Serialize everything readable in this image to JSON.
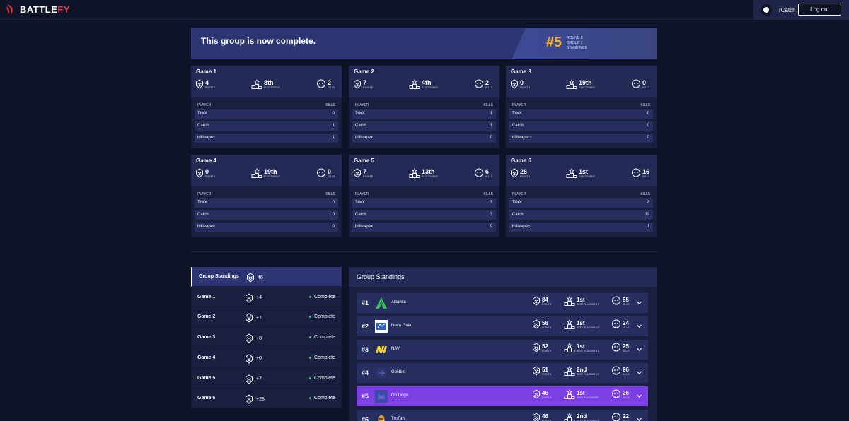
{
  "header": {
    "brand": "BATTLE",
    "brand_accent": "FY",
    "username": "rCatch",
    "logout_label": "Log out"
  },
  "banner": {
    "message": "This group is now complete.",
    "rank": "#5",
    "round": "ROUND 8",
    "group": "GROUP 1",
    "standings": "STANDINGS"
  },
  "labels": {
    "points": "POINTS",
    "placement": "PLACEMENT",
    "kills": "KILLS",
    "player": "PLAYER",
    "best_placement": "BEST PLACEMENT"
  },
  "games": [
    {
      "title": "Game 1",
      "points": "4",
      "placement": "8th",
      "kills": "2",
      "players": [
        {
          "name": "TrixX",
          "kills": "0"
        },
        {
          "name": "Catch",
          "kills": "1"
        },
        {
          "name": "billieapex",
          "kills": "1"
        }
      ]
    },
    {
      "title": "Game 2",
      "points": "7",
      "placement": "4th",
      "kills": "2",
      "players": [
        {
          "name": "TrixX",
          "kills": "1"
        },
        {
          "name": "Catch",
          "kills": "1"
        },
        {
          "name": "billieapex",
          "kills": "0"
        }
      ]
    },
    {
      "title": "Game 3",
      "points": "0",
      "placement": "19th",
      "kills": "0",
      "players": [
        {
          "name": "TrixX",
          "kills": "0"
        },
        {
          "name": "Catch",
          "kills": "0"
        },
        {
          "name": "billieapex",
          "kills": "0"
        }
      ]
    },
    {
      "title": "Game 4",
      "points": "0",
      "placement": "19th",
      "kills": "0",
      "players": [
        {
          "name": "TrixX",
          "kills": "0"
        },
        {
          "name": "Catch",
          "kills": "0"
        },
        {
          "name": "billieapex",
          "kills": "0"
        }
      ]
    },
    {
      "title": "Game 5",
      "points": "7",
      "placement": "13th",
      "kills": "6",
      "players": [
        {
          "name": "TrixX",
          "kills": "3"
        },
        {
          "name": "Catch",
          "kills": "3"
        },
        {
          "name": "billieapex",
          "kills": "0"
        }
      ]
    },
    {
      "title": "Game 6",
      "points": "28",
      "placement": "1st",
      "kills": "16",
      "players": [
        {
          "name": "TrixX",
          "kills": "3"
        },
        {
          "name": "Catch",
          "kills": "12"
        },
        {
          "name": "billieapex",
          "kills": "1"
        }
      ]
    }
  ],
  "sidebar": {
    "items": [
      {
        "label": "Group Standings",
        "points": "46",
        "status": ""
      },
      {
        "label": "Game 1",
        "points": "+4",
        "status": "Complete"
      },
      {
        "label": "Game 2",
        "points": "+7",
        "status": "Complete"
      },
      {
        "label": "Game 3",
        "points": "+0",
        "status": "Complete"
      },
      {
        "label": "Game 4",
        "points": "+0",
        "status": "Complete"
      },
      {
        "label": "Game 5",
        "points": "+7",
        "status": "Complete"
      },
      {
        "label": "Game 6",
        "points": "+28",
        "status": "Complete"
      }
    ]
  },
  "standings": {
    "title": "Group Standings",
    "rows": [
      {
        "rank": "#1",
        "team": "Alliance",
        "points": "84",
        "best": "1st",
        "kills": "55",
        "logo": "alliance-logo",
        "highlight": false
      },
      {
        "rank": "#2",
        "team": "Nova Gaia",
        "points": "56",
        "best": "1st",
        "kills": "24",
        "logo": "nova-gaia-logo",
        "highlight": false
      },
      {
        "rank": "#3",
        "team": "NAVI",
        "points": "52",
        "best": "1st",
        "kills": "25",
        "logo": "navi-logo",
        "highlight": false
      },
      {
        "rank": "#4",
        "team": "GoNext",
        "points": "51",
        "best": "2nd",
        "kills": "26",
        "logo": "gonext-logo",
        "highlight": false
      },
      {
        "rank": "#5",
        "team": "On Dogs",
        "points": "46",
        "best": "1st",
        "kills": "26",
        "logo": "on-dogs-logo",
        "highlight": true
      },
      {
        "rank": "#6",
        "team": "Tro7an",
        "points": "46",
        "best": "2nd",
        "kills": "22",
        "logo": "tro7an-logo",
        "highlight": false
      }
    ]
  },
  "colors": {
    "background": "#0f1328",
    "card": "#1a1f3f",
    "card_header": "#222a55",
    "row": "#262f5f",
    "highlight": "#7b3fe4",
    "rank_accent": "#f4b233",
    "status_green": "#2ed47a",
    "brand_red": "#e23b4a"
  }
}
